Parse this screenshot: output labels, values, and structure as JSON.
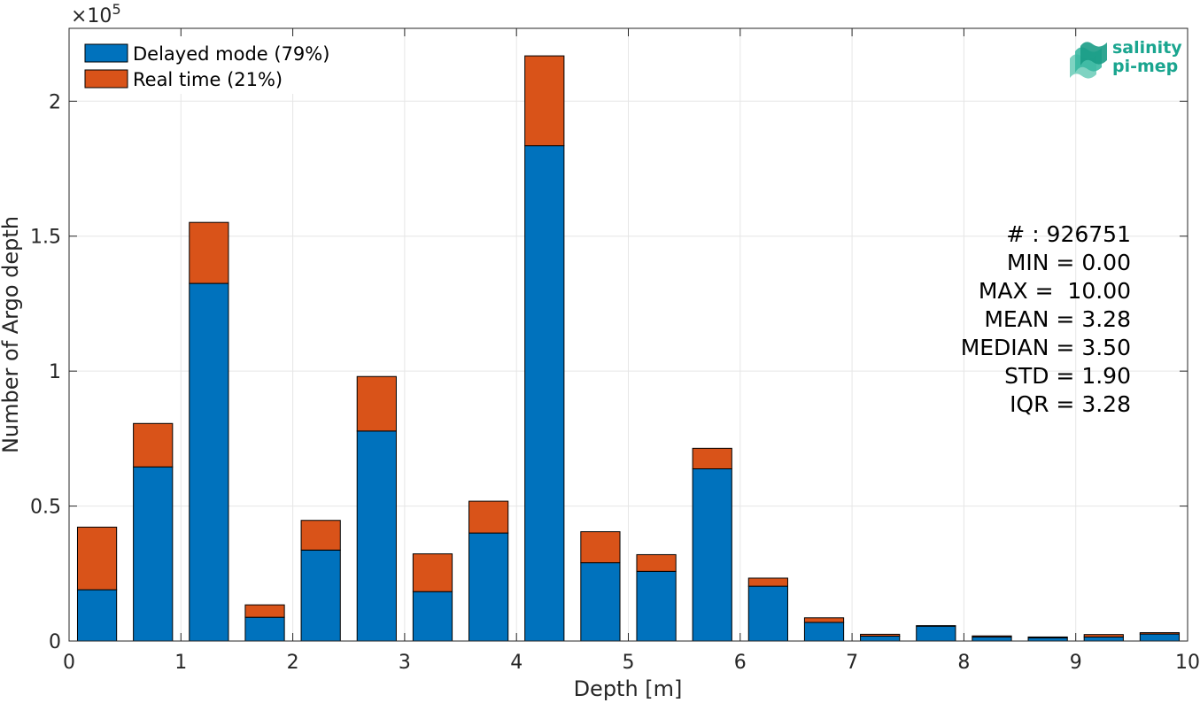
{
  "chart_data": {
    "type": "bar",
    "stacked": true,
    "xlabel": "Depth [m]",
    "ylabel": "Number of Argo depth",
    "exponent_label": "×10",
    "exponent_power": "5",
    "xlim": [
      0,
      10
    ],
    "ylim": [
      0,
      227000
    ],
    "xticks": [
      0,
      1,
      2,
      3,
      4,
      5,
      6,
      7,
      8,
      9,
      10
    ],
    "yticks": [
      0,
      50000,
      100000,
      150000,
      200000
    ],
    "ytick_labels": [
      "0",
      "0.5",
      "1",
      "1.5",
      "2"
    ],
    "bin_width": 0.5,
    "bin_centers": [
      0.25,
      0.75,
      1.25,
      1.75,
      2.25,
      2.75,
      3.25,
      3.75,
      4.25,
      4.75,
      5.25,
      5.75,
      6.25,
      6.75,
      7.25,
      7.75,
      8.25,
      8.75,
      9.25,
      9.75
    ],
    "series": [
      {
        "name": "Delayed mode (79%)",
        "color": "#0072BD",
        "values": [
          19000,
          64500,
          132500,
          8800,
          33700,
          77800,
          18300,
          40000,
          183500,
          29000,
          25800,
          63800,
          20300,
          6900,
          1800,
          5500,
          1500,
          1200,
          1500,
          2600
        ]
      },
      {
        "name": "Real time (21%)",
        "color": "#D95319",
        "values": [
          23200,
          16100,
          22600,
          4600,
          11000,
          20200,
          14000,
          11800,
          33300,
          11500,
          6200,
          7600,
          3000,
          1700,
          700,
          200,
          400,
          300,
          900,
          500
        ]
      }
    ],
    "grid": true,
    "legend_position": "top-left"
  },
  "stats": [
    "# : 926751",
    "MIN = 0.00",
    "MAX =  10.00",
    "MEAN = 3.28",
    "MEDIAN = 3.50",
    "STD = 1.90",
    "IQR = 3.28"
  ],
  "logo": {
    "line1": "salinity",
    "line2": "pi-mep",
    "icon": "wave-layers-icon",
    "color": "#1aa58f"
  }
}
